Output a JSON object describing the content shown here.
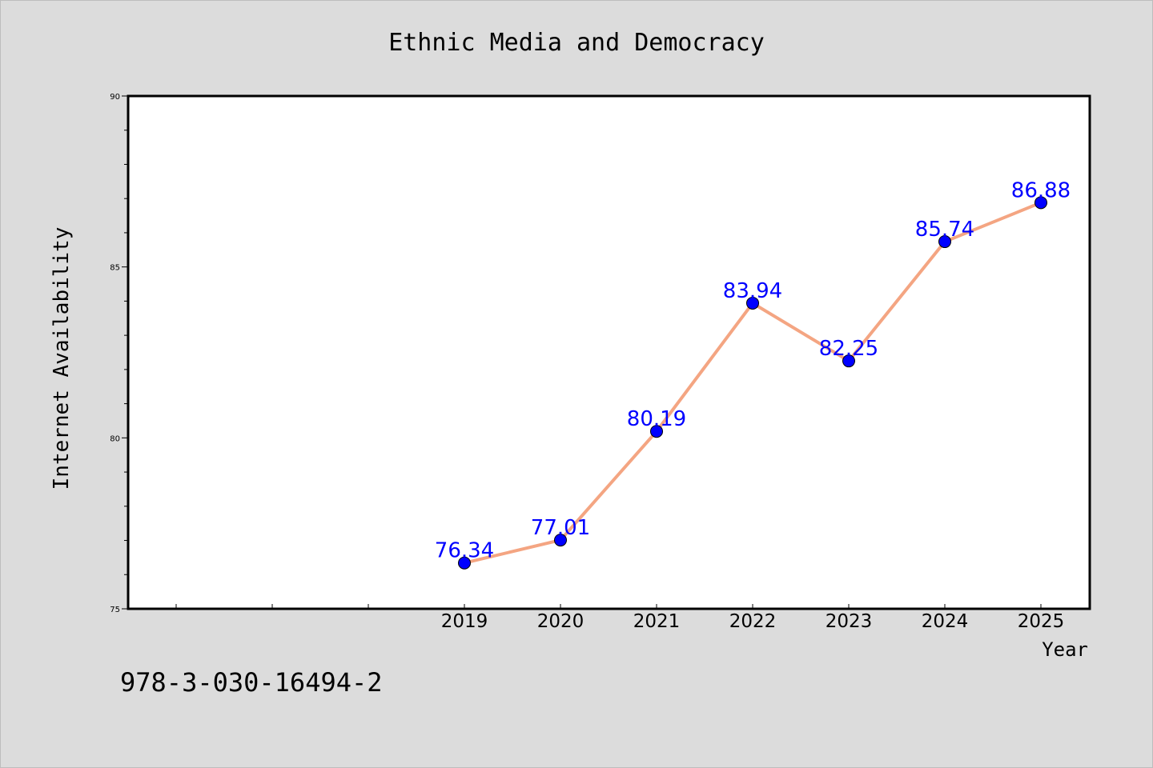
{
  "chart_data": {
    "type": "line",
    "title": "Ethnic Media and Democracy",
    "xlabel": "Year",
    "ylabel": "Internet Availability",
    "categories": [
      "2019",
      "2020",
      "2021",
      "2022",
      "2023",
      "2024",
      "2025"
    ],
    "series": [
      {
        "values": [
          76.34,
          77.01,
          80.19,
          83.94,
          82.25,
          85.74,
          86.88
        ],
        "line_color": "#f4a582",
        "marker_color": "#0000ff"
      }
    ],
    "data_labels": [
      "76.34",
      "77.01",
      "80.19",
      "83.94",
      "82.25",
      "85.74",
      "86.88"
    ],
    "ylim": [
      75,
      90
    ],
    "yticks": [
      "75",
      "80",
      "85",
      "90"
    ],
    "grid": false,
    "legend": "none"
  },
  "footnote": "978-3-030-16494-2"
}
